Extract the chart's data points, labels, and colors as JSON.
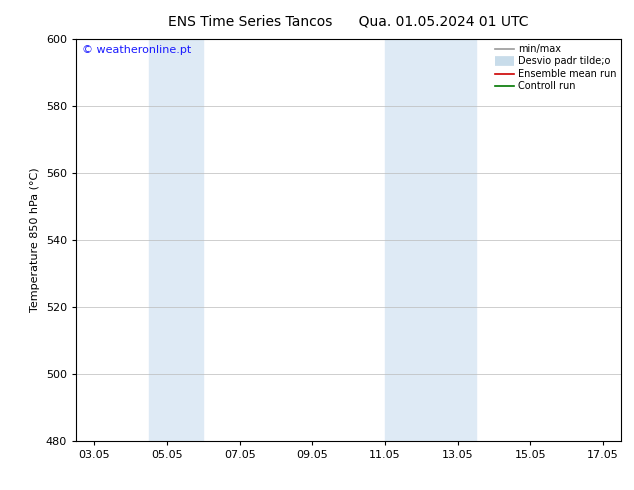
{
  "title": "ENS Time Series Tancos      Qua. 01.05.2024 01 UTC",
  "ylabel": "Temperature 850 hPa (°C)",
  "watermark": "© weatheronline.pt",
  "watermark_color": "#1a1aff",
  "xlim_start": 2.5,
  "xlim_end": 17.5,
  "ylim_bottom": 480,
  "ylim_top": 600,
  "yticks": [
    480,
    500,
    520,
    540,
    560,
    580,
    600
  ],
  "xtick_labels": [
    "03.05",
    "05.05",
    "07.05",
    "09.05",
    "11.05",
    "13.05",
    "15.05",
    "17.05"
  ],
  "xtick_positions": [
    3,
    5,
    7,
    9,
    11,
    13,
    15,
    17
  ],
  "shaded_blocks": [
    {
      "xmin": 4.5,
      "xmax": 6.0
    },
    {
      "xmin": 11.0,
      "xmax": 13.5
    }
  ],
  "shade_color": "#deeaf5",
  "bg_color": "#ffffff",
  "spine_color": "#000000",
  "tick_color": "#000000",
  "label_color": "#000000",
  "legend_fontsize": 7,
  "axis_fontsize": 8,
  "title_fontsize": 10
}
